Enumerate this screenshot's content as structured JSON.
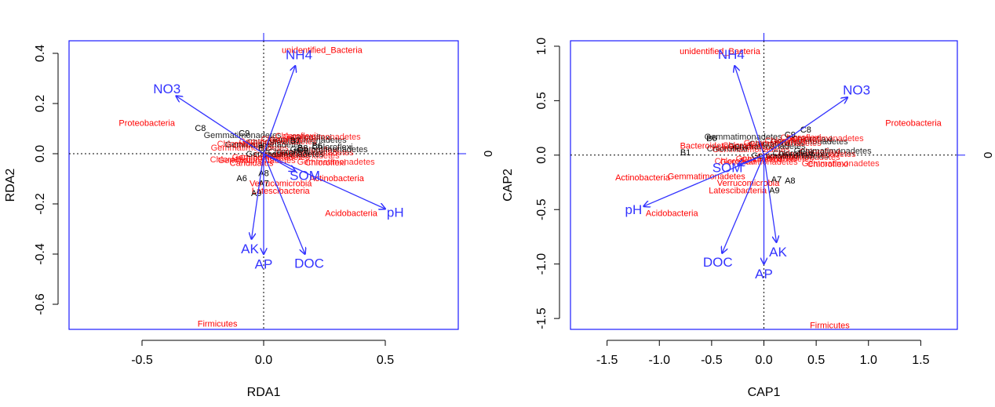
{
  "colors": {
    "frame": "#1a1aff",
    "arrow": "#3333ff",
    "env_label": "#3333ff",
    "taxon": "#ff0000",
    "site": "#000000",
    "axis_text": "#000000"
  },
  "chart_data": [
    {
      "type": "scatter",
      "title": "",
      "xlabel": "RDA1",
      "ylabel": "RDA2",
      "xlim": [
        -0.8,
        0.8
      ],
      "ylim": [
        -0.7,
        0.45
      ],
      "xticks": [
        "-0.5",
        "0.0",
        "0.5"
      ],
      "yticks": [
        "-0.6",
        "-0.4",
        "-0.2",
        "0.0",
        "0.2",
        "0.4"
      ],
      "right_axis_label": "0",
      "env_arrows": [
        {
          "name": "NH4",
          "x": 0.13,
          "y": 0.35
        },
        {
          "name": "NO3",
          "x": -0.36,
          "y": 0.23
        },
        {
          "name": "pH",
          "x": 0.5,
          "y": -0.22
        },
        {
          "name": "AK",
          "x": -0.05,
          "y": -0.34
        },
        {
          "name": "AP",
          "x": 0.0,
          "y": -0.4
        },
        {
          "name": "DOC",
          "x": 0.17,
          "y": -0.4
        },
        {
          "name": "SOM",
          "x": 0.13,
          "y": -0.07
        }
      ],
      "taxa": [
        {
          "name": "unidentified_Bacteria",
          "x": 0.24,
          "y": 0.41
        },
        {
          "name": "Proteobacteria",
          "x": -0.48,
          "y": 0.12
        },
        {
          "name": "Acidobacteria",
          "x": 0.36,
          "y": -0.24
        },
        {
          "name": "Actinobacteria",
          "x": 0.3,
          "y": -0.1
        },
        {
          "name": "Latescibacteria",
          "x": 0.07,
          "y": -0.15
        },
        {
          "name": "Verrucomicrobia",
          "x": 0.07,
          "y": -0.12
        },
        {
          "name": "Candidatus",
          "x": -0.05,
          "y": -0.04
        },
        {
          "name": "Firmicutes",
          "x": -0.19,
          "y": -0.68
        }
      ],
      "sites": [
        {
          "name": "C8",
          "x": -0.26,
          "y": 0.1
        },
        {
          "name": "C9",
          "x": -0.08,
          "y": 0.08
        },
        {
          "name": "B7",
          "x": 0.13,
          "y": 0.05
        },
        {
          "name": "B8",
          "x": 0.16,
          "y": 0.02
        },
        {
          "name": "B6",
          "x": 0.22,
          "y": 0.03
        },
        {
          "name": "B1",
          "x": 0.0,
          "y": 0.02
        },
        {
          "name": "A9",
          "x": -0.03,
          "y": -0.16
        },
        {
          "name": "A6",
          "x": -0.09,
          "y": -0.1
        },
        {
          "name": "A8",
          "x": 0.0,
          "y": -0.08
        },
        {
          "name": "A7",
          "x": 0.0,
          "y": -0.12
        }
      ]
    },
    {
      "type": "scatter",
      "title": "",
      "xlabel": "CAP1",
      "ylabel": "CAP2",
      "xlim": [
        -1.85,
        1.85
      ],
      "ylim": [
        -1.6,
        1.05
      ],
      "xticks": [
        "-1.5",
        "-1.0",
        "-0.5",
        "0.0",
        "0.5",
        "1.0",
        "1.5"
      ],
      "yticks": [
        "-1.5",
        "-1.0",
        "-0.5",
        "0.0",
        "0.5",
        "1.0"
      ],
      "right_axis_label": "0",
      "env_arrows": [
        {
          "name": "NH4",
          "x": -0.28,
          "y": 0.82
        },
        {
          "name": "NO3",
          "x": 0.8,
          "y": 0.53
        },
        {
          "name": "pH",
          "x": -1.15,
          "y": -0.47
        },
        {
          "name": "SOM",
          "x": -0.25,
          "y": -0.09
        },
        {
          "name": "DOC",
          "x": -0.4,
          "y": -0.9
        },
        {
          "name": "AK",
          "x": 0.12,
          "y": -0.8
        },
        {
          "name": "AP",
          "x": 0.0,
          "y": -1.0
        }
      ],
      "taxa": [
        {
          "name": "unidentified_Bacteria",
          "x": -0.42,
          "y": 0.95
        },
        {
          "name": "Proteobacteria",
          "x": 1.43,
          "y": 0.29
        },
        {
          "name": "Actinobacteria",
          "x": -1.16,
          "y": -0.21
        },
        {
          "name": "Acidobacteria",
          "x": -0.88,
          "y": -0.54
        },
        {
          "name": "Latescibacteria",
          "x": -0.25,
          "y": -0.33
        },
        {
          "name": "Verrucomicrobia",
          "x": -0.15,
          "y": -0.26
        },
        {
          "name": "Gemmatimonadetes",
          "x": -0.55,
          "y": -0.2
        },
        {
          "name": "Bacteroidetes",
          "x": -0.55,
          "y": 0.08
        },
        {
          "name": "Firmicutes",
          "x": 0.63,
          "y": -1.57
        }
      ],
      "sites": [
        {
          "name": "C8",
          "x": 0.4,
          "y": 0.23
        },
        {
          "name": "C9",
          "x": 0.25,
          "y": 0.18
        },
        {
          "name": "B6",
          "x": -0.5,
          "y": 0.15
        },
        {
          "name": "B1",
          "x": -0.75,
          "y": 0.02
        },
        {
          "name": "A7",
          "x": 0.12,
          "y": -0.23
        },
        {
          "name": "A8",
          "x": 0.25,
          "y": -0.24
        },
        {
          "name": "A9",
          "x": 0.1,
          "y": -0.33
        }
      ]
    }
  ]
}
